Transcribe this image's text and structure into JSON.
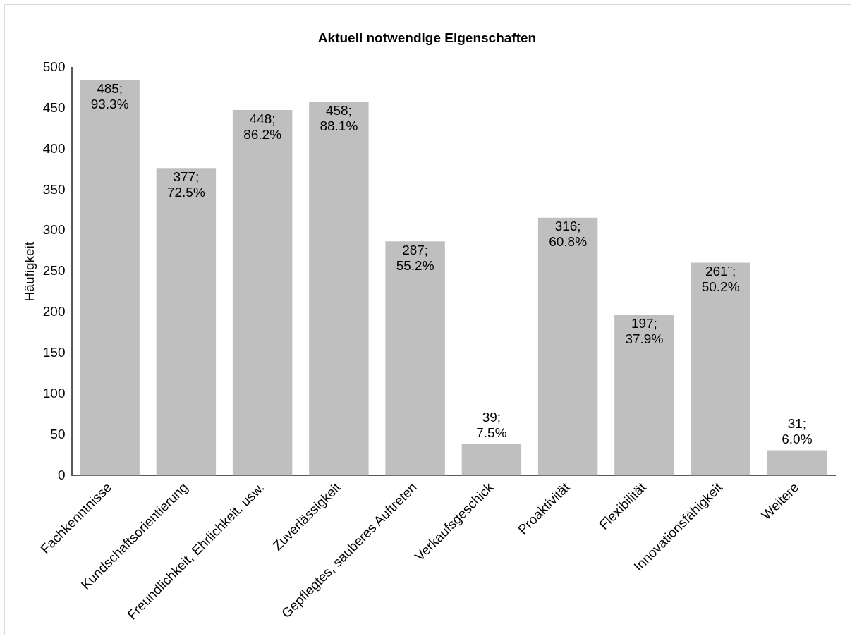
{
  "chart_data": {
    "type": "bar",
    "title": "Aktuell notwendige Eigenschaften",
    "ylabel": "Häufigkeit",
    "categories": [
      "Fachkenntnisse",
      "Kundschaftsorientierung",
      "Freundlichkeit, Ehrlichkeit, usw.",
      "Zuverlässigkeit",
      "Gepflegtes, sauberes Auftreten",
      "Verkaufsgeschick",
      "Proaktivität",
      "Flexibilität",
      "Innovationsfähigkeit",
      "Weitere"
    ],
    "values": [
      485,
      377,
      448,
      458,
      287,
      39,
      316,
      197,
      261,
      31
    ],
    "value_labels": [
      "485; 93.3%",
      "377; 72.5%",
      "448; 86.2%",
      "458; 88.1%",
      "287; 55.2%",
      "39; 7.5%",
      "316; 60.8%",
      "197; 37.9%",
      "261¨; 50.2%",
      "31; 6.0%"
    ],
    "color": "#bfbfbf",
    "ylim": [
      0,
      500
    ],
    "yticks": [
      0,
      50,
      100,
      150,
      200,
      250,
      300,
      350,
      400,
      450,
      500
    ],
    "grid": false,
    "legend": false
  }
}
